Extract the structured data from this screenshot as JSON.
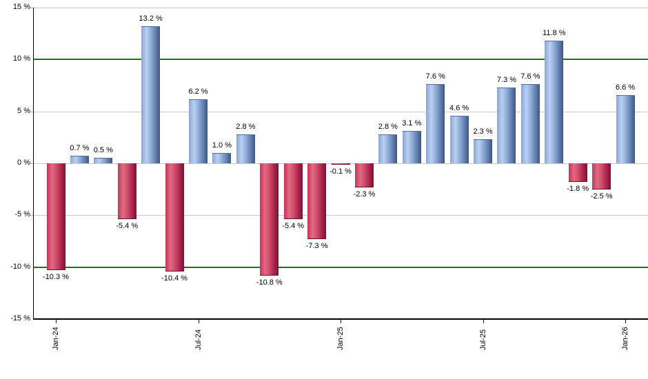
{
  "chart_data": {
    "type": "bar",
    "title": "",
    "unit": "%",
    "values": [
      -10.3,
      0.7,
      0.5,
      -5.4,
      13.2,
      -10.4,
      6.2,
      1.0,
      2.8,
      -10.8,
      -5.4,
      -7.3,
      -0.1,
      -2.3,
      2.8,
      3.1,
      7.6,
      4.6,
      2.3,
      7.3,
      7.6,
      11.8,
      -1.8,
      -2.5,
      6.6
    ],
    "value_labels": [
      "-10.3 %",
      "0.7 %",
      "0.5 %",
      "-5.4 %",
      "13.2 %",
      "-10.4 %",
      "6.2 %",
      "1.0 %",
      "2.8 %",
      "-10.8 %",
      "-5.4 %",
      "-7.3 %",
      "-0.1 %",
      "-2.3 %",
      "2.8 %",
      "3.1 %",
      "7.6 %",
      "4.6 %",
      "2.3 %",
      "7.3 %",
      "7.6 %",
      "11.8 %",
      "-1.8 %",
      "-2.5 %",
      "6.6 %"
    ],
    "x_axis": {
      "tick_labels": [
        "Jan-24",
        "Jul-24",
        "Jan-25",
        "Jul-25",
        "Jan-26"
      ],
      "tick_bar_indices": [
        0,
        6,
        12,
        18,
        24
      ],
      "n_bars": 25
    },
    "y_axis": {
      "tick_values": [
        15,
        10,
        5,
        0,
        -5,
        -10,
        -15
      ],
      "tick_labels": [
        "15 %",
        "10 %",
        "5 %",
        "0 %",
        "-5 %",
        "-10 %",
        "-15 %"
      ],
      "range": [
        -15,
        15
      ],
      "threshold_lines": [
        10,
        -10
      ],
      "grid": true
    },
    "legend": "none",
    "colors": {
      "positive_bar": "#7d9cc9",
      "positive_bar_light": "#b9d0f4",
      "positive_bar_dark": "#3f5578",
      "negative_bar": "#ce3a5e",
      "negative_bar_light": "#e06b84",
      "negative_bar_dark": "#7c1233",
      "threshold_line": "#0b7d0b",
      "gridline": "#c8c8c8",
      "axis": "#000000",
      "label_text": "#000000",
      "background": "#ffffff"
    }
  }
}
